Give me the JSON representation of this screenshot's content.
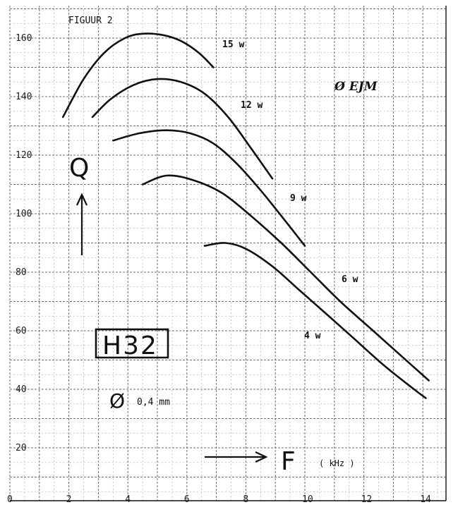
{
  "figure_title": "FIGUUR 2",
  "model_label": "H32",
  "diameter_label": "0,4 mm",
  "diameter_symbol": "Ø",
  "brand_label": "Ø EJM",
  "y_axis_symbol": "Q",
  "x_axis_symbol": "F",
  "x_unit_label": "( kHz )",
  "chart_data": {
    "type": "line",
    "title": "FIGUUR 2",
    "xlabel": "F",
    "ylabel": "Q",
    "xlim": [
      0,
      14.8
    ],
    "ylim": [
      0,
      166
    ],
    "x_ticks": [
      0,
      2,
      4,
      6,
      8,
      10,
      12,
      14
    ],
    "y_ticks": [
      20,
      40,
      60,
      80,
      100,
      120,
      140,
      160
    ],
    "grid": true,
    "series": [
      {
        "name": "15 w",
        "x": [
          1.8,
          2.5,
          3.2,
          3.9,
          4.5,
          5.2,
          5.8,
          6.4,
          6.9
        ],
        "y": [
          133,
          146,
          155,
          160,
          161.5,
          161,
          159,
          155,
          150
        ]
      },
      {
        "name": "12 w",
        "x": [
          2.8,
          3.4,
          4.2,
          5.0,
          5.8,
          6.6,
          7.4,
          8.2,
          8.9
        ],
        "y": [
          133,
          139,
          144,
          146,
          145,
          141,
          133,
          122,
          112
        ]
      },
      {
        "name": "9 w",
        "x": [
          3.5,
          4.4,
          5.3,
          6.1,
          6.9,
          7.7,
          8.5,
          9.3,
          10.0
        ],
        "y": [
          125,
          127.5,
          128.5,
          127.5,
          124,
          117,
          108,
          98,
          89
        ]
      },
      {
        "name": "6 w",
        "x": [
          4.5,
          5.3,
          6.2,
          7.2,
          8.2,
          9.2,
          10.2,
          11.2,
          12.2,
          13.2,
          14.2
        ],
        "y": [
          110,
          113,
          111.5,
          107,
          99,
          90,
          80,
          70,
          61,
          52,
          43
        ]
      },
      {
        "name": "4 w",
        "x": [
          6.6,
          7.3,
          8.0,
          8.9,
          9.8,
          10.7,
          11.7,
          12.7,
          13.7,
          14.1
        ],
        "y": [
          89,
          90,
          88,
          82,
          74,
          66,
          57,
          48,
          40,
          37
        ]
      }
    ]
  }
}
